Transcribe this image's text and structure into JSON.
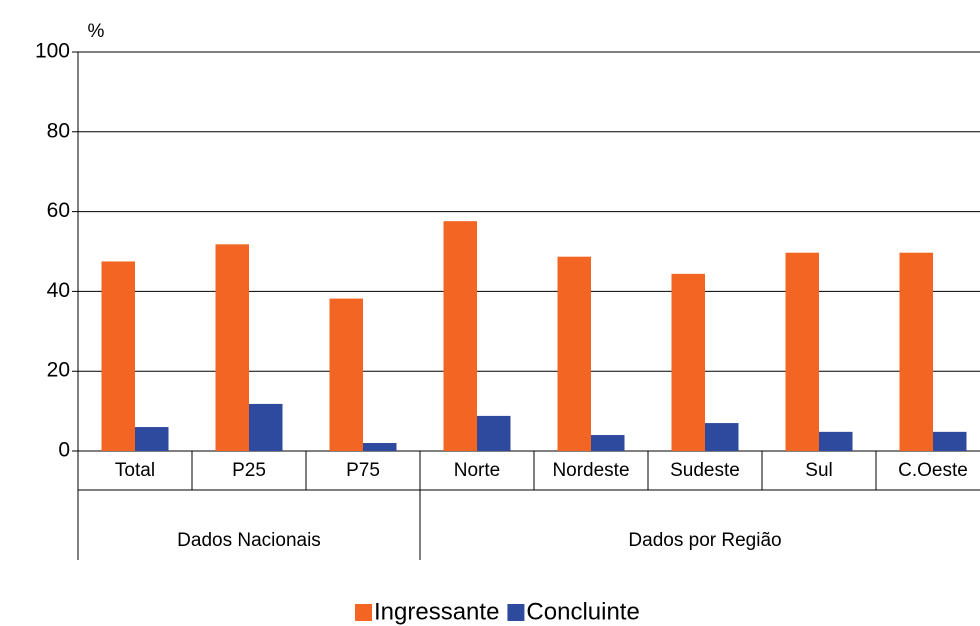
{
  "chart_data": {
    "type": "bar",
    "y_unit": "%",
    "groups": [
      {
        "name": "Dados Nacionais",
        "categories": [
          "Total",
          "P25",
          "P75"
        ]
      },
      {
        "name": "Dados por Região",
        "categories": [
          "Norte",
          "Nordeste",
          "Sudeste",
          "Sul",
          "C.Oeste"
        ]
      }
    ],
    "series": [
      {
        "name": "Ingressante",
        "color": "#f26522",
        "values": [
          47.5,
          51.8,
          38.2,
          57.6,
          48.7,
          44.4,
          49.7,
          49.7
        ]
      },
      {
        "name": "Concluinte",
        "color": "#2e4a9e",
        "values": [
          6,
          11.8,
          2,
          8.8,
          4,
          7,
          4.8,
          4.8
        ]
      }
    ],
    "ylim": [
      0,
      100
    ],
    "yticks": [
      0,
      20,
      40,
      60,
      80,
      100
    ],
    "grid": true,
    "legend": "bottom"
  }
}
